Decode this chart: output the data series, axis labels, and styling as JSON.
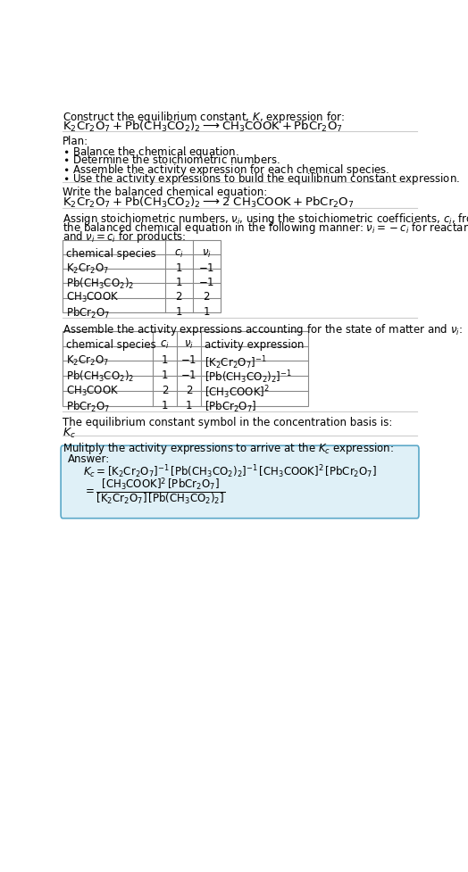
{
  "bg_color": "#ffffff",
  "text_color": "#000000",
  "table_border_color": "#888888",
  "answer_box_bg": "#dff0f7",
  "answer_box_border": "#5aa8c8",
  "sections": {
    "s1_intro": "Construct the equilibrium constant, $K$, expression for:",
    "s1_reaction": "$\\mathrm{K_2Cr_2O_7 + Pb(CH_3CO_2)_2 \\longrightarrow CH_3COOK + PbCr_2O_7}$",
    "s2_plan_header": "Plan:",
    "s2_plan_items": [
      "\\bullet\\ \\mathrm{Balance\\ the\\ chemical\\ equation.}",
      "\\bullet\\ \\mathrm{Determine\\ the\\ stoichiometric\\ numbers.}",
      "\\bullet\\ \\mathrm{Assemble\\ the\\ activity\\ expression\\ for\\ each\\ chemical\\ species.}",
      "\\bullet\\ \\mathrm{Use\\ the\\ activity\\ expressions\\ to\\ build\\ the\\ equilibrium\\ constant\\ expression.}"
    ],
    "s3_balanced_header": "Write the balanced chemical equation:",
    "s3_reaction": "$\\mathrm{K_2Cr_2O_7 + Pb(CH_3CO_2)_2 \\longrightarrow 2\\ CH_3COOK + PbCr_2O_7}$",
    "s4_assign_header": [
      "Assign stoichiometric numbers, $\\nu_i$, using the stoichiometric coefficients, $c_i$, from",
      "the balanced chemical equation in the following manner: $\\nu_i = -c_i$ for reactants",
      "and $\\nu_i = c_i$ for products:"
    ],
    "s4_table_col_headers": [
      "chemical species",
      "$c_i$",
      "$\\nu_i$"
    ],
    "s4_table_data": [
      [
        "$\\mathrm{K_2Cr_2O_7}$",
        "1",
        "$-1$"
      ],
      [
        "$\\mathrm{Pb(CH_3CO_2)_2}$",
        "1",
        "$-1$"
      ],
      [
        "$\\mathrm{CH_3COOK}$",
        "2",
        "2"
      ],
      [
        "$\\mathrm{PbCr_2O_7}$",
        "1",
        "1"
      ]
    ],
    "s5_assemble_header": "Assemble the activity expressions accounting for the state of matter and $\\nu_i$:",
    "s5_table_col_headers": [
      "chemical species",
      "$c_i$",
      "$\\nu_i$",
      "activity expression"
    ],
    "s5_table_data": [
      [
        "$\\mathrm{K_2Cr_2O_7}$",
        "1",
        "$-1$",
        "$[\\mathrm{K_2Cr_2O_7}]^{-1}$"
      ],
      [
        "$\\mathrm{Pb(CH_3CO_2)_2}$",
        "1",
        "$-1$",
        "$[\\mathrm{Pb(CH_3CO_2)_2}]^{-1}$"
      ],
      [
        "$\\mathrm{CH_3COOK}$",
        "2",
        "2",
        "$[\\mathrm{CH_3COOK}]^2$"
      ],
      [
        "$\\mathrm{PbCr_2O_7}$",
        "1",
        "1",
        "$[\\mathrm{PbCr_2O_7}]$"
      ]
    ],
    "s6_kc_header": "The equilibrium constant symbol in the concentration basis is:",
    "s6_kc": "$K_c$",
    "s7_multiply_header": "Mulitply the activity expressions to arrive at the $K_c$ expression:",
    "s7_answer_label": "Answer:",
    "s7_line1": "$K_c = [\\mathrm{K_2Cr_2O_7}]^{-1}\\,[\\mathrm{Pb(CH_3CO_2)_2}]^{-1}\\,[\\mathrm{CH_3COOK}]^2\\,[\\mathrm{PbCr_2O_7}]$",
    "s7_numerator": "$[\\mathrm{CH_3COOK}]^2\\,[\\mathrm{PbCr_2O_7}]$",
    "s7_denominator": "$[\\mathrm{K_2Cr_2O_7}]\\,[\\mathrm{Pb(CH_3CO_2)_2}]$"
  }
}
